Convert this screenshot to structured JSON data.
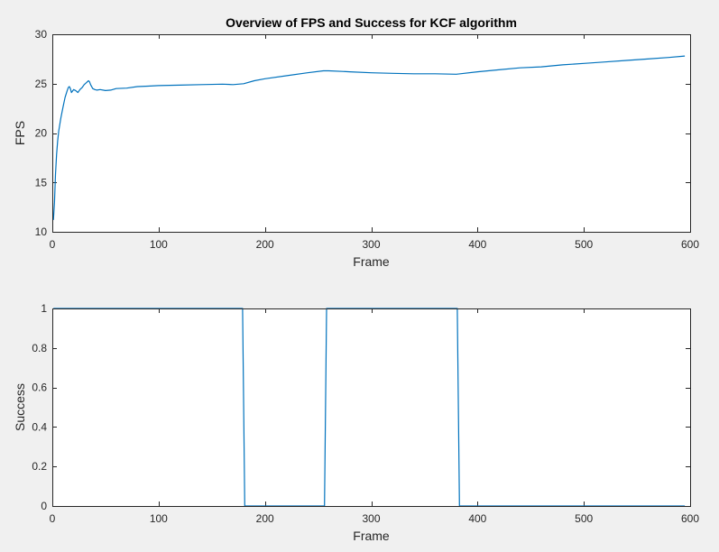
{
  "figure": {
    "background": "#f0f0f0",
    "axes_background": "#ffffff",
    "axis_color": "#262626",
    "line_color": "#0072bd"
  },
  "chart_data": [
    {
      "type": "line",
      "title": "Overview of FPS and Success for KCF algorithm",
      "xlabel": "Frame",
      "ylabel": "FPS",
      "xlim": [
        0,
        600
      ],
      "ylim": [
        10,
        30
      ],
      "xticks": [
        0,
        100,
        200,
        300,
        400,
        500,
        600
      ],
      "yticks": [
        10,
        15,
        20,
        25,
        30
      ],
      "grid": false,
      "series": [
        {
          "x": [
            1,
            2,
            3,
            4,
            5,
            6,
            8,
            10,
            12,
            14,
            15,
            16,
            17,
            18,
            20,
            22,
            24,
            26,
            28,
            30,
            32,
            34,
            35,
            36,
            38,
            40,
            42,
            45,
            50,
            55,
            60,
            70,
            80,
            90,
            100,
            120,
            140,
            160,
            170,
            180,
            190,
            200,
            220,
            240,
            255,
            260,
            280,
            300,
            320,
            340,
            360,
            380,
            400,
            420,
            440,
            460,
            480,
            500,
            520,
            540,
            560,
            580,
            595
          ],
          "y": [
            11.2,
            13.0,
            15.8,
            17.8,
            19.2,
            20.2,
            21.5,
            22.6,
            23.6,
            24.3,
            24.6,
            24.7,
            24.5,
            24.1,
            24.4,
            24.3,
            24.1,
            24.4,
            24.6,
            24.9,
            25.1,
            25.3,
            25.2,
            24.9,
            24.5,
            24.4,
            24.35,
            24.4,
            24.3,
            24.35,
            24.5,
            24.55,
            24.7,
            24.75,
            24.8,
            24.85,
            24.9,
            24.95,
            24.9,
            25.0,
            25.3,
            25.5,
            25.8,
            26.1,
            26.3,
            26.3,
            26.2,
            26.1,
            26.05,
            26.0,
            26.0,
            25.95,
            26.2,
            26.4,
            26.6,
            26.7,
            26.9,
            27.05,
            27.2,
            27.35,
            27.5,
            27.65,
            27.8
          ]
        }
      ]
    },
    {
      "type": "line",
      "title": "",
      "xlabel": "Frame",
      "ylabel": "Success",
      "xlim": [
        0,
        600
      ],
      "ylim": [
        0,
        1
      ],
      "xticks": [
        0,
        100,
        200,
        300,
        400,
        500,
        600
      ],
      "yticks": [
        0,
        0.2,
        0.4,
        0.6,
        0.8,
        1
      ],
      "grid": false,
      "series": [
        {
          "x": [
            1,
            179,
            181,
            256,
            258,
            381,
            383,
            595
          ],
          "y": [
            1,
            1,
            0,
            0,
            1,
            1,
            0,
            0
          ]
        }
      ]
    }
  ]
}
